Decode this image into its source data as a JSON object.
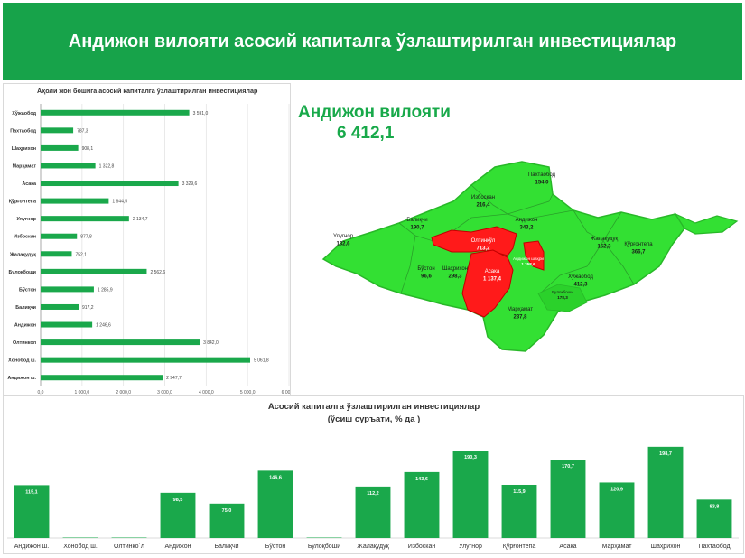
{
  "header": {
    "title": "Андижон вилояти асосий капиталга ўзлаштирилган инвестициялар"
  },
  "map": {
    "title": "Андижон вилояти",
    "total": "6 412,1",
    "regions": [
      {
        "name": "Пахтаобод",
        "value": "154,0",
        "red": false
      },
      {
        "name": "Избоскан",
        "value": "216,4",
        "red": false
      },
      {
        "name": "Балиқчи",
        "value": "190,7",
        "red": false
      },
      {
        "name": "Андижон",
        "value": "343,2",
        "red": false
      },
      {
        "name": "Улугнор",
        "value": "132,6",
        "red": false
      },
      {
        "name": "Олтинкўл",
        "value": "713,2",
        "red": true
      },
      {
        "name": "Андижон шаҳри",
        "value": "1 358,6",
        "red": true
      },
      {
        "name": "Жалақудуқ",
        "value": "152,3",
        "red": false
      },
      {
        "name": "Қўрғонтепа",
        "value": "366,7",
        "red": false
      },
      {
        "name": "Бўстон",
        "value": "96,6",
        "red": false
      },
      {
        "name": "Шаҳрихон",
        "value": "298,3",
        "red": false
      },
      {
        "name": "Асака",
        "value": "1 137,4",
        "red": true
      },
      {
        "name": "Хўжаобод",
        "value": "412,3",
        "red": false
      },
      {
        "name": "Булоқбоши",
        "value": "178,3",
        "red": false
      },
      {
        "name": "Марҳамат",
        "value": "237,8",
        "red": false
      }
    ]
  },
  "colors": {
    "green": "#17a34a",
    "bar": "#1aa84b",
    "map_green": "#33e033",
    "map_red": "#ff1a1a"
  },
  "chart_data": [
    {
      "type": "bar",
      "orientation": "horizontal",
      "title": "Аҳоли жон бошига асосий капиталга ўзлаштирилган инвестициялар",
      "categories": [
        "Хўжаобод",
        "Пахтаобод",
        "Шаҳрихон",
        "Марҳамат",
        "Асака",
        "Қўрғонтепа",
        "Улугнор",
        "Избоскан",
        "Жалақудуқ",
        "Булоқбоши",
        "Бўстон",
        "Балиқчи",
        "Андижон",
        "Олтинкол",
        "Хонобод ш.",
        "Андижон ш."
      ],
      "values": [
        3591.0,
        787.3,
        908.1,
        1322.8,
        3329.6,
        1644.5,
        2134.7,
        877.8,
        752.1,
        2562.6,
        1285.9,
        917.2,
        1246.6,
        3842.0,
        5061.8,
        2947.7
      ],
      "value_labels": [
        "3 591,0",
        "787,3",
        "908,1",
        "1 322,8",
        "3 329,6",
        "1 644,5",
        "2 134,7",
        "877,8",
        "752,1",
        "2 562,6",
        "1 285,9",
        "917,2",
        "1 246,6",
        "3 842,0",
        "5 061,8",
        "2 947,7"
      ],
      "xlim": [
        0,
        6000
      ],
      "ticks": [
        0,
        1000,
        2000,
        3000,
        4000,
        5000,
        6000
      ],
      "tick_labels": [
        "0,0",
        "1 000,0",
        "2 000,0",
        "3 000,0",
        "4 000,0",
        "5 000,0",
        "6 000,0"
      ],
      "grid": true
    },
    {
      "type": "bar",
      "title": "Асосий капиталга ўзлаштирилган инвестициялар",
      "subtitle": "(ўсиш суръати, % да )",
      "categories": [
        "Андижон ш.",
        "Хонобод ш.",
        "Олтинко`л",
        "Андижон",
        "Балиқчи",
        "Бўстон",
        "Булоқбоши",
        "Жалақудуқ",
        "Избоскан",
        "Улугнор",
        "Қўрғонтепа",
        "Асака",
        "Марҳамат",
        "Шаҳрихон",
        "Пахтаобод"
      ],
      "values": [
        115.1,
        1.0,
        1.0,
        98.5,
        75.0,
        146.6,
        1.0,
        112.2,
        143.6,
        190.3,
        115.9,
        170.7,
        120.9,
        198.7,
        83.8
      ],
      "value_labels": [
        "115,1",
        "",
        "",
        "98,5",
        "75,0",
        "146,6",
        "",
        "112,2",
        "143,6",
        "190,3",
        "115,9",
        "170,7",
        "120,9",
        "198,7",
        "83,8"
      ],
      "ylim": [
        0,
        220
      ]
    }
  ]
}
